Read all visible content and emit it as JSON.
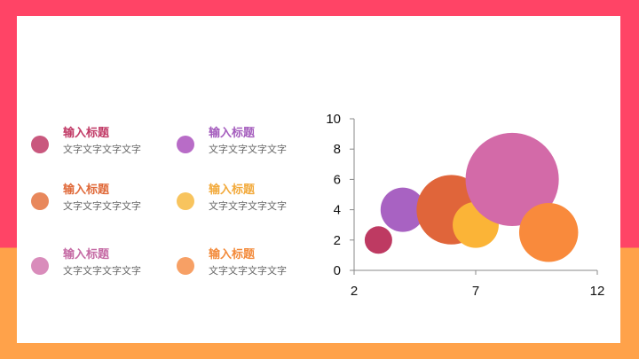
{
  "legend": [
    {
      "title": "输入标题",
      "desc": "文字文字文字文字",
      "dot_color": "#c9587e",
      "title_color": "#c13a66"
    },
    {
      "title": "输入标题",
      "desc": "文字文字文字文字",
      "dot_color": "#b86cc7",
      "title_color": "#a45cbd"
    },
    {
      "title": "输入标题",
      "desc": "文字文字文字文字",
      "dot_color": "#e8885c",
      "title_color": "#e06a3a"
    },
    {
      "title": "输入标题",
      "desc": "文字文字文字文字",
      "dot_color": "#f8c45e",
      "title_color": "#f2a93a"
    },
    {
      "title": "输入标题",
      "desc": "文字文字文字文字",
      "dot_color": "#d98cbb",
      "title_color": "#c56aa4"
    },
    {
      "title": "输入标题",
      "desc": "文字文字文字文字",
      "dot_color": "#f7a065",
      "title_color": "#f38a3a"
    }
  ],
  "chart_data": {
    "type": "scatter",
    "variant": "bubble",
    "xlim": [
      2,
      12
    ],
    "ylim": [
      0,
      10
    ],
    "x_ticks": [
      2,
      7,
      12
    ],
    "y_ticks": [
      0,
      2,
      4,
      6,
      8,
      10
    ],
    "points": [
      {
        "x": 3,
        "y": 2,
        "size": 1,
        "color": "#be3a62"
      },
      {
        "x": 4,
        "y": 4,
        "size": 2.6,
        "color": "#a862c2"
      },
      {
        "x": 6,
        "y": 4,
        "size": 6.4,
        "color": "#e0653a"
      },
      {
        "x": 7,
        "y": 3,
        "size": 2.8,
        "color": "#fbb437"
      },
      {
        "x": 8.5,
        "y": 6,
        "size": 11.5,
        "color": "#d36aa8"
      },
      {
        "x": 10,
        "y": 2.5,
        "size": 4.6,
        "color": "#f98a3c"
      }
    ],
    "grid": false,
    "legend": "none"
  }
}
